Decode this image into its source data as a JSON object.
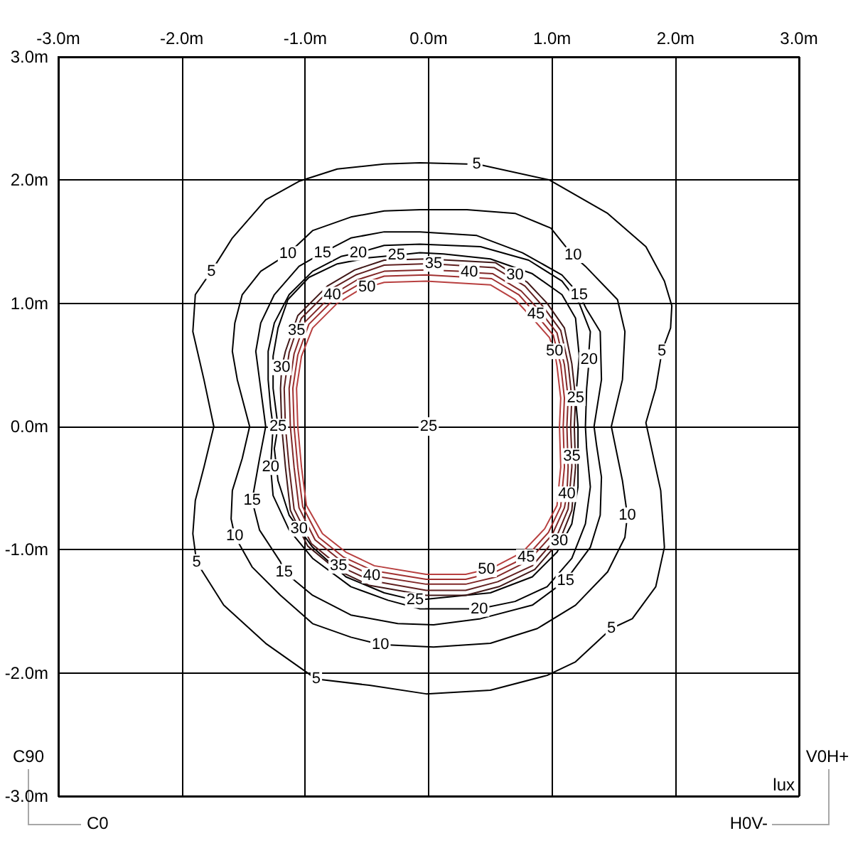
{
  "chart_data": {
    "type": "line",
    "xlim": [
      -3,
      3
    ],
    "ylim": [
      -3,
      3
    ],
    "xticks": [
      {
        "value": -3,
        "label": "-3.0m"
      },
      {
        "value": -2,
        "label": "-2.0m"
      },
      {
        "value": -1,
        "label": "-1.0m"
      },
      {
        "value": 0,
        "label": "0.0m"
      },
      {
        "value": 1,
        "label": "1.0m"
      },
      {
        "value": 2,
        "label": "2.0m"
      },
      {
        "value": 3,
        "label": "3.0m"
      }
    ],
    "yticks": [
      {
        "value": -3,
        "label": "-3.0m"
      },
      {
        "value": -2,
        "label": "-2.0m"
      },
      {
        "value": -1,
        "label": "-1.0m"
      },
      {
        "value": 0,
        "label": "0.0m"
      },
      {
        "value": 1,
        "label": "1.0m"
      },
      {
        "value": 2,
        "label": "2.0m"
      },
      {
        "value": 3,
        "label": "3.0m"
      }
    ],
    "grid": true,
    "marker": "none",
    "line_style": "solid",
    "series": [
      {
        "color": "#000000",
        "x": [
          0.39,
          0.98,
          1.45,
          1.76,
          1.91,
          1.97,
          1.96,
          1.89,
          1.84,
          1.76,
          1.88,
          1.91,
          1.84,
          1.65,
          1.48,
          1.19,
          0.96,
          0.5,
          -0.02,
          -0.48,
          -0.91,
          -1.32,
          -1.66,
          -1.88,
          -1.91,
          -1.89,
          -1.82,
          -1.74,
          -1.82,
          -1.91,
          -1.89,
          -1.76,
          -1.59,
          -1.32,
          -1.05,
          -0.74,
          -0.36,
          -0.07,
          0.31
        ],
        "values": [
          2.13,
          2.0,
          1.73,
          1.46,
          1.18,
          0.98,
          0.8,
          0.61,
          0.31,
          0.03,
          -0.52,
          -0.98,
          -1.3,
          -1.56,
          -1.64,
          -1.91,
          -2.02,
          -2.14,
          -2.17,
          -2.1,
          -2.05,
          -1.76,
          -1.45,
          -1.1,
          -0.87,
          -0.6,
          -0.33,
          0.0,
          0.38,
          0.77,
          1.07,
          1.26,
          1.53,
          1.84,
          1.99,
          2.09,
          2.13,
          2.14,
          2.13
        ]
      },
      {
        "color": "#000000",
        "x": [
          1.17,
          1.27,
          1.53,
          1.59,
          1.57,
          1.48,
          1.57,
          1.61,
          1.59,
          1.45,
          1.19,
          0.88,
          0.5,
          0.04,
          -0.39,
          -0.63,
          -0.94,
          -1.2,
          -1.43,
          -1.57,
          -1.6,
          -1.59,
          -1.51,
          -1.45,
          -1.55,
          -1.59,
          -1.57,
          -1.51,
          -1.36,
          -1.14,
          -0.94,
          -0.63,
          -0.36,
          -0.07,
          0.31,
          0.7,
          0.99,
          1.11
        ],
        "values": [
          1.39,
          1.3,
          1.03,
          0.77,
          0.38,
          0.0,
          -0.44,
          -0.72,
          -0.9,
          -1.18,
          -1.45,
          -1.64,
          -1.76,
          -1.79,
          -1.77,
          -1.71,
          -1.6,
          -1.37,
          -1.14,
          -0.89,
          -0.75,
          -0.52,
          -0.26,
          0.0,
          0.38,
          0.61,
          0.84,
          1.07,
          1.26,
          1.4,
          1.59,
          1.7,
          1.75,
          1.76,
          1.76,
          1.73,
          1.61,
          1.46
        ]
      },
      {
        "color": "#000000",
        "x": [
          1.22,
          1.28,
          1.39,
          1.4,
          1.34,
          1.36,
          1.4,
          1.39,
          1.31,
          1.11,
          0.84,
          0.42,
          0.04,
          -0.25,
          -0.63,
          -0.94,
          -1.17,
          -1.2,
          -1.37,
          -1.43,
          -1.37,
          -1.32,
          -1.37,
          -1.4,
          -1.36,
          -1.25,
          -1.05,
          -0.86,
          -0.63,
          -0.36,
          -0.07,
          0.39,
          0.76,
          1.08,
          1.16
        ],
        "values": [
          1.07,
          0.95,
          0.77,
          0.38,
          0.0,
          -0.15,
          -0.41,
          -0.72,
          -0.98,
          -1.25,
          -1.45,
          -1.56,
          -1.61,
          -1.6,
          -1.53,
          -1.37,
          -1.18,
          -1.1,
          -0.84,
          -0.6,
          -0.26,
          0.0,
          0.38,
          0.61,
          0.84,
          1.07,
          1.3,
          1.41,
          1.53,
          1.58,
          1.58,
          1.55,
          1.41,
          1.23,
          1.14
        ]
      },
      {
        "color": "#000000",
        "x": [
          1.3,
          1.28,
          1.27,
          1.28,
          1.31,
          1.27,
          1.16,
          0.96,
          0.7,
          0.41,
          -0.07,
          -0.33,
          -0.63,
          -0.94,
          -1.13,
          -1.26,
          -1.28,
          -1.26,
          -1.28,
          -1.3,
          -1.3,
          -1.25,
          -1.13,
          -0.94,
          -0.71,
          -0.57,
          -0.36,
          -0.07,
          0.42,
          0.81,
          1.08,
          1.22,
          1.31,
          1.3
        ],
        "values": [
          0.54,
          0.31,
          0.0,
          -0.18,
          -0.49,
          -0.79,
          -1.07,
          -1.3,
          -1.42,
          -1.48,
          -1.48,
          -1.41,
          -1.3,
          -1.07,
          -0.84,
          -0.56,
          -0.33,
          0.0,
          0.15,
          0.38,
          0.61,
          0.84,
          1.07,
          1.26,
          1.38,
          1.41,
          1.47,
          1.48,
          1.46,
          1.35,
          1.18,
          1.0,
          0.77,
          0.63
        ]
      },
      {
        "color": "#000000",
        "x": [
          1.19,
          1.21,
          1.21,
          1.21,
          1.16,
          1.04,
          0.84,
          0.5,
          -0.11,
          -0.36,
          -0.67,
          -0.94,
          -1.13,
          -1.22,
          -1.25,
          -1.22,
          -1.26,
          -1.26,
          -1.22,
          -1.14,
          -0.97,
          -0.74,
          -0.48,
          -0.26,
          -0.07,
          0.12,
          0.5,
          0.84,
          1.08,
          1.19,
          1.22,
          1.2
        ],
        "values": [
          0.23,
          0.0,
          -0.18,
          -0.49,
          -0.79,
          -1.02,
          -1.22,
          -1.35,
          -1.41,
          -1.35,
          -1.22,
          -0.98,
          -0.72,
          -0.44,
          -0.18,
          0.0,
          0.31,
          0.57,
          0.8,
          1.03,
          1.21,
          1.32,
          1.37,
          1.39,
          1.41,
          1.4,
          1.36,
          1.24,
          1.07,
          0.88,
          0.57,
          0.33
        ]
      },
      {
        "color": "#401818",
        "x": [
          0.7,
          0.8,
          0.96,
          1.1,
          1.16,
          1.19,
          1.18,
          1.19,
          1.16,
          1.06,
          0.86,
          0.57,
          0.3,
          -0.02,
          -0.48,
          -0.75,
          -0.98,
          -1.05,
          -1.12,
          -1.16,
          -1.19,
          -1.2,
          -1.19,
          -1.16,
          -1.06,
          -0.82,
          -0.6,
          -0.36,
          -0.02,
          0.54,
          0.62
        ],
        "values": [
          1.23,
          1.17,
          1.0,
          0.8,
          0.51,
          0.23,
          0.0,
          -0.33,
          -0.68,
          -0.93,
          -1.16,
          -1.3,
          -1.37,
          -1.37,
          -1.29,
          -1.16,
          -0.97,
          -0.83,
          -0.68,
          -0.33,
          0.0,
          0.31,
          0.48,
          0.61,
          0.9,
          1.14,
          1.27,
          1.35,
          1.36,
          1.33,
          1.28
        ]
      },
      {
        "color": "#602020",
        "x": [
          0.04,
          0.53,
          0.78,
          0.93,
          1.07,
          1.13,
          1.16,
          1.15,
          1.16,
          1.16,
          1.13,
          1.03,
          0.84,
          0.56,
          0.3,
          -0.02,
          -0.47,
          -0.73,
          -0.95,
          -1.09,
          -1.13,
          -1.16,
          -1.17,
          -1.13,
          -1.07,
          -1.03,
          -0.8,
          -0.59,
          -0.36,
          -0.05
        ],
        "values": [
          1.32,
          1.29,
          1.14,
          0.97,
          0.78,
          0.51,
          0.23,
          0.0,
          -0.24,
          -0.33,
          -0.67,
          -0.91,
          -1.13,
          -1.26,
          -1.33,
          -1.33,
          -1.25,
          -1.13,
          -0.95,
          -0.67,
          -0.33,
          0.0,
          0.31,
          0.6,
          0.78,
          0.88,
          1.11,
          1.23,
          1.31,
          1.32
        ]
      },
      {
        "color": "#802828",
        "x": [
          0.33,
          0.52,
          0.75,
          0.9,
          1.04,
          1.1,
          1.13,
          1.12,
          1.13,
          1.12,
          1.1,
          1.0,
          0.81,
          0.55,
          0.3,
          -0.02,
          -0.46,
          -0.71,
          -0.92,
          -1.05,
          -1.09,
          -1.12,
          -1.13,
          -1.09,
          -1.0,
          -0.78,
          -0.58,
          -0.36,
          -0.02,
          0.24
        ],
        "values": [
          1.25,
          1.24,
          1.1,
          0.94,
          0.76,
          0.5,
          0.23,
          0.0,
          -0.33,
          -0.55,
          -0.66,
          -0.88,
          -1.09,
          -1.22,
          -1.28,
          -1.28,
          -1.21,
          -1.09,
          -0.92,
          -0.66,
          -0.33,
          0.0,
          0.31,
          0.59,
          0.85,
          1.07,
          1.19,
          1.26,
          1.27,
          1.26
        ]
      },
      {
        "color": "#a03030",
        "x": [
          0.87,
          1.01,
          1.07,
          1.1,
          1.09,
          1.1,
          1.07,
          0.97,
          0.79,
          0.54,
          0.3,
          -0.02,
          -0.45,
          -0.69,
          -0.89,
          -1.02,
          -1.06,
          -1.09,
          -1.1,
          -1.06,
          -0.97,
          -0.76,
          -0.57,
          -0.36,
          -0.02,
          0.51,
          0.73,
          0.81
        ],
        "values": [
          0.91,
          0.74,
          0.5,
          0.23,
          0.0,
          -0.33,
          -0.65,
          -0.86,
          -1.06,
          -1.18,
          -1.24,
          -1.24,
          -1.17,
          -1.06,
          -0.9,
          -0.65,
          -0.33,
          0.0,
          0.31,
          0.58,
          0.83,
          1.04,
          1.15,
          1.22,
          1.23,
          1.2,
          1.07,
          0.98
        ]
      },
      {
        "color": "#b84040",
        "x": [
          1.02,
          1.04,
          1.07,
          1.06,
          1.07,
          1.04,
          0.94,
          0.76,
          0.53,
          0.47,
          0.3,
          -0.02,
          -0.44,
          -0.67,
          -0.86,
          -0.99,
          -1.03,
          -1.06,
          -1.07,
          -1.03,
          -0.94,
          -0.74,
          -0.56,
          -0.5,
          -0.36,
          -0.02,
          0.5,
          0.7,
          0.84,
          0.98,
          0.99
        ],
        "values": [
          0.61,
          0.49,
          0.23,
          0.0,
          -0.33,
          -0.64,
          -0.83,
          -1.02,
          -1.14,
          -1.16,
          -1.2,
          -1.2,
          -1.13,
          -1.02,
          -0.87,
          -0.64,
          -0.33,
          0.0,
          0.31,
          0.57,
          0.8,
          1.0,
          1.11,
          1.13,
          1.17,
          1.18,
          1.15,
          1.03,
          0.88,
          0.72,
          0.69
        ]
      }
    ],
    "annotations": [
      "C90",
      "C0",
      "V0H+",
      "H0V-",
      "lux",
      "25",
      {
        "text": "5",
        "x": 0.39,
        "y": 2.13
      },
      {
        "text": "5",
        "x": 1.89,
        "y": 0.61
      },
      {
        "text": "5",
        "x": 1.48,
        "y": -1.64
      },
      {
        "text": "5",
        "x": -0.91,
        "y": -2.05
      },
      {
        "text": "5",
        "x": -1.88,
        "y": -1.1
      },
      {
        "text": "5",
        "x": -1.76,
        "y": 1.26
      },
      {
        "text": "10",
        "x": 1.17,
        "y": 1.39
      },
      {
        "text": "10",
        "x": 1.61,
        "y": -0.72
      },
      {
        "text": "10",
        "x": -0.39,
        "y": -1.77
      },
      {
        "text": "10",
        "x": -1.57,
        "y": -0.89
      },
      {
        "text": "10",
        "x": -1.14,
        "y": 1.4
      },
      {
        "text": "15",
        "x": 1.22,
        "y": 1.07
      },
      {
        "text": "15",
        "x": 1.11,
        "y": -1.25
      },
      {
        "text": "15",
        "x": -1.17,
        "y": -1.18
      },
      {
        "text": "15",
        "x": -1.43,
        "y": -0.6
      },
      {
        "text": "15",
        "x": -0.86,
        "y": 1.41
      },
      {
        "text": "20",
        "x": 1.3,
        "y": 0.54
      },
      {
        "text": "20",
        "x": 0.41,
        "y": -1.48
      },
      {
        "text": "20",
        "x": -1.28,
        "y": -0.33
      },
      {
        "text": "20",
        "x": -0.57,
        "y": 1.41
      },
      {
        "text": "25",
        "x": 1.19,
        "y": 0.23
      },
      {
        "text": "25",
        "x": -0.11,
        "y": -1.41
      },
      {
        "text": "25",
        "x": -1.22,
        "y": 0.0
      },
      {
        "text": "25",
        "x": -0.26,
        "y": 1.39
      },
      {
        "text": "30",
        "x": 0.7,
        "y": 1.23
      },
      {
        "text": "30",
        "x": 1.06,
        "y": -0.93
      },
      {
        "text": "30",
        "x": -1.05,
        "y": -0.83
      },
      {
        "text": "30",
        "x": -1.19,
        "y": 0.48
      },
      {
        "text": "35",
        "x": 0.04,
        "y": 1.32
      },
      {
        "text": "35",
        "x": 1.16,
        "y": -0.24
      },
      {
        "text": "35",
        "x": -0.73,
        "y": -1.13
      },
      {
        "text": "35",
        "x": -1.07,
        "y": 0.78
      },
      {
        "text": "40",
        "x": 0.33,
        "y": 1.25
      },
      {
        "text": "40",
        "x": 1.12,
        "y": -0.55
      },
      {
        "text": "40",
        "x": -0.46,
        "y": -1.21
      },
      {
        "text": "40",
        "x": -0.78,
        "y": 1.07
      },
      {
        "text": "45",
        "x": 0.87,
        "y": 0.91
      },
      {
        "text": "45",
        "x": 0.79,
        "y": -1.06
      },
      {
        "text": "50",
        "x": 1.02,
        "y": 0.61
      },
      {
        "text": "50",
        "x": 0.47,
        "y": -1.16
      },
      {
        "text": "50",
        "x": -0.5,
        "y": 1.13
      }
    ]
  }
}
